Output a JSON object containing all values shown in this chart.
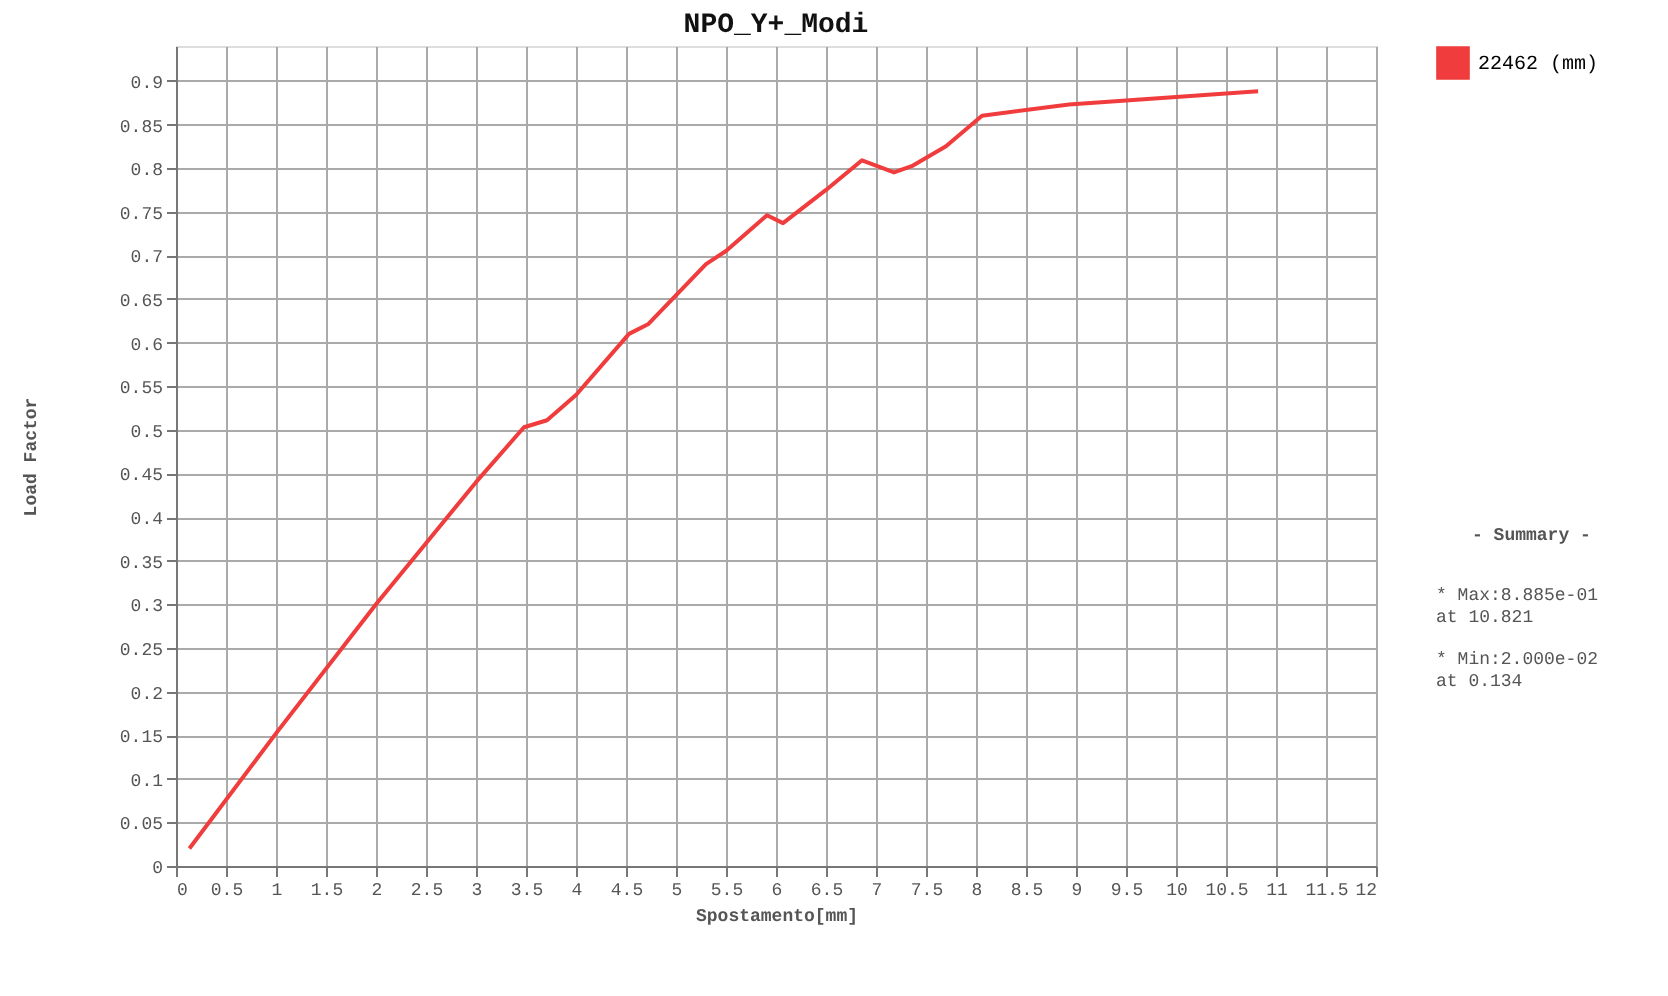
{
  "chart_data": {
    "type": "line",
    "title": "NPO_Y+_Modi",
    "xlabel": "Spostamento[mm]",
    "ylabel": "Load Factor",
    "x": [
      0.134,
      1.0,
      2.0,
      2.5,
      3.0,
      3.48,
      3.71,
      4.0,
      4.53,
      4.72,
      5.3,
      5.5,
      5.91,
      6.07,
      6.5,
      6.86,
      7.18,
      7.37,
      7.7,
      8.06,
      8.93,
      10.821
    ],
    "series": [
      {
        "name": "22462 (mm)",
        "color": "#f03c3c",
        "values": [
          0.02,
          0.152,
          0.3,
          0.37,
          0.44,
          0.503,
          0.511,
          0.54,
          0.61,
          0.621,
          0.69,
          0.705,
          0.746,
          0.737,
          0.775,
          0.809,
          0.795,
          0.803,
          0.825,
          0.86,
          0.873,
          0.888
        ]
      }
    ],
    "xlim": [
      0,
      12
    ],
    "xticks": [
      0,
      0.5,
      1,
      1.5,
      2,
      2.5,
      3,
      3.5,
      4,
      4.5,
      5,
      5.5,
      6,
      6.5,
      7,
      7.5,
      8,
      8.5,
      9,
      9.5,
      10,
      10.5,
      11,
      11.5,
      12
    ],
    "ylim": [
      0,
      0.94
    ],
    "yticks": [
      0,
      0.05,
      0.1,
      0.15,
      0.2,
      0.25,
      0.3,
      0.35,
      0.4,
      0.45,
      0.5,
      0.55,
      0.6,
      0.65,
      0.7,
      0.75,
      0.8,
      0.85,
      0.9
    ],
    "grid": true,
    "legend": "right",
    "marker": "none",
    "line_style": "solid",
    "annotations": [
      "- Summary -",
      "* Max:8.885e-01\n  at 10.821",
      "* Min:2.000e-02\n  at  0.134"
    ]
  }
}
